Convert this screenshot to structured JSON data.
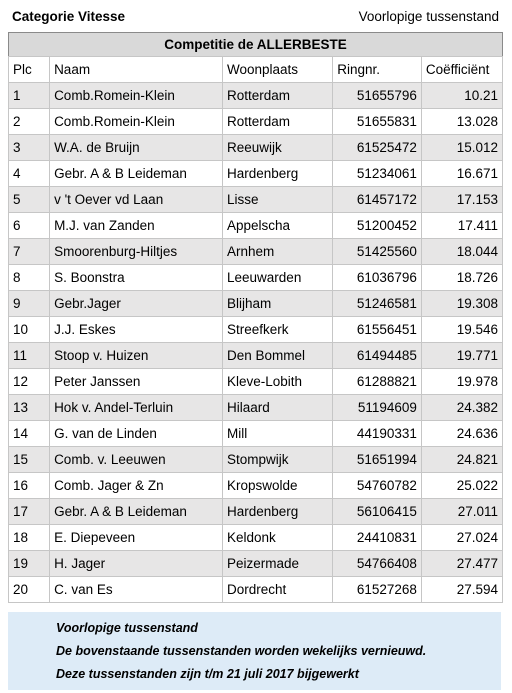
{
  "header": {
    "category": "Categorie Vitesse",
    "status": "Voorlopige tussenstand",
    "competition": "Competitie de ALLERBESTE"
  },
  "table": {
    "columns": [
      "Plc",
      "Naam",
      "Woonplaats",
      "Ringnr.",
      "Coëfficiënt"
    ],
    "rows": [
      [
        "1",
        "Comb.Romein-Klein",
        "Rotterdam",
        "51655796",
        "10.21"
      ],
      [
        "2",
        "Comb.Romein-Klein",
        "Rotterdam",
        "51655831",
        "13.028"
      ],
      [
        "3",
        "W.A. de Bruijn",
        "Reeuwijk",
        "61525472",
        "15.012"
      ],
      [
        "4",
        "Gebr. A & B Leideman",
        "Hardenberg",
        "51234061",
        "16.671"
      ],
      [
        "5",
        "v 't Oever vd Laan",
        "Lisse",
        "61457172",
        "17.153"
      ],
      [
        "6",
        "M.J. van Zanden",
        "Appelscha",
        "51200452",
        "17.411"
      ],
      [
        "7",
        "Smoorenburg-Hiltjes",
        "Arnhem",
        "51425560",
        "18.044"
      ],
      [
        "8",
        "S. Boonstra",
        "Leeuwarden",
        "61036796",
        "18.726"
      ],
      [
        "9",
        "Gebr.Jager",
        "Blijham",
        "51246581",
        "19.308"
      ],
      [
        "10",
        "J.J. Eskes",
        "Streefkerk",
        "61556451",
        "19.546"
      ],
      [
        "11",
        "Stoop v. Huizen",
        "Den Bommel",
        "61494485",
        "19.771"
      ],
      [
        "12",
        "Peter Janssen",
        "Kleve-Lobith",
        "61288821",
        "19.978"
      ],
      [
        "13",
        "Hok v. Andel-Terluin",
        "Hilaard",
        "51194609",
        "24.382"
      ],
      [
        "14",
        "G. van de Linden",
        "Mill",
        "44190331",
        "24.636"
      ],
      [
        "15",
        "Comb. v. Leeuwen",
        "Stompwijk",
        "51651994",
        "24.821"
      ],
      [
        "16",
        "Comb. Jager & Zn",
        "Kropswolde",
        "54760782",
        "25.022"
      ],
      [
        "17",
        "Gebr. A & B Leideman",
        "Hardenberg",
        "56106415",
        "27.011"
      ],
      [
        "18",
        "E. Diepeveen",
        "Keldonk",
        "24410831",
        "27.024"
      ],
      [
        "19",
        "H. Jager",
        "Peizermade",
        "54766408",
        "27.477"
      ],
      [
        "20",
        "C. van Es",
        "Dordrecht",
        "61527268",
        "27.594"
      ]
    ]
  },
  "notes": {
    "line1": "Voorlopige tussenstand",
    "line2": "De bovenstaande tussenstanden worden wekelijks vernieuwd.",
    "line3": "Deze tussenstanden zijn t/m 21 juli 2017 bijgewerkt"
  },
  "colors": {
    "header_band": "#d9d9d9",
    "row_shade": "#e7e6e6",
    "notes_background": "#ddebf7",
    "gridline": "#c6c6c6"
  }
}
